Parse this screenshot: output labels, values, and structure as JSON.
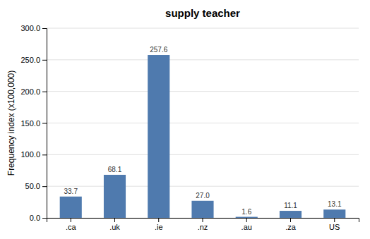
{
  "chart_data": {
    "type": "bar",
    "title": "supply teacher",
    "categories": [
      ".ca",
      ".uk",
      ".ie",
      ".nz",
      ".au",
      ".za",
      "US"
    ],
    "values": [
      33.7,
      68.1,
      257.6,
      27.0,
      1.6,
      11.1,
      13.1
    ],
    "value_labels": [
      "33.7",
      "68.1",
      "257.6",
      "27.0",
      "1.6",
      "11.1",
      "13.1"
    ],
    "color": "#4f7aae",
    "ylabel": "Frequency index (x100,000)",
    "ylim": [
      0,
      300
    ],
    "yticks": [
      {
        "value": 0,
        "label": "0.0"
      },
      {
        "value": 50,
        "label": "50.0"
      },
      {
        "value": 100,
        "label": "100.0"
      },
      {
        "value": 150,
        "label": "150.0"
      },
      {
        "value": 200,
        "label": "200.0"
      },
      {
        "value": 250,
        "label": "250.0"
      },
      {
        "value": 300,
        "label": "300.0"
      }
    ],
    "grid": true,
    "data_labels": true
  }
}
